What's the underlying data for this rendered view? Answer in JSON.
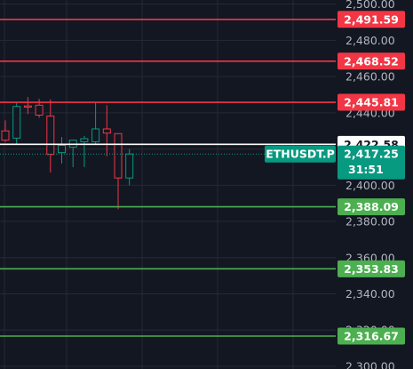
{
  "chart_data": {
    "type": "candlestick",
    "symbol": "ETHUSDT.P",
    "countdown": "31:51",
    "y_axis_ticks": [
      2500.0,
      2480.0,
      2460.0,
      2440.0,
      2420.0,
      2400.0,
      2380.0,
      2360.0,
      2340.0,
      2320.0,
      2300.0
    ],
    "y_axis_tick_labels": [
      "2,500.00",
      "2,480.00",
      "2,460.00",
      "2,440.00",
      "2,420.00",
      "2,400.00",
      "2,380.00",
      "2,360.00",
      "2,340.00",
      "2,320.00",
      "2,300.00"
    ],
    "ylim": [
      2298.5,
      2502.3
    ],
    "current_price": {
      "value": 2417.25,
      "label": "2,417.25",
      "symbol_label": "ETHUSDT.P",
      "color": "#089981"
    },
    "reference_line": {
      "value": 2422.58,
      "label": "2,422.58",
      "color": "#ffffff"
    },
    "resistance_lines": [
      {
        "value": 2491.59,
        "label": "2,491.59"
      },
      {
        "value": 2468.52,
        "label": "2,468.52"
      },
      {
        "value": 2445.81,
        "label": "2,445.81"
      }
    ],
    "support_lines": [
      {
        "value": 2388.09,
        "label": "2,388.09"
      },
      {
        "value": 2353.83,
        "label": "2,353.83"
      },
      {
        "value": 2316.67,
        "label": "2,316.67"
      }
    ],
    "candles": [
      {
        "open": 2430.0,
        "high": 2435.8,
        "low": 2424.0,
        "close": 2424.9
      },
      {
        "open": 2426.0,
        "high": 2445.3,
        "low": 2422.6,
        "close": 2443.5
      },
      {
        "open": 2443.8,
        "high": 2448.7,
        "low": 2439.3,
        "close": 2443.1
      },
      {
        "open": 2444.2,
        "high": 2447.7,
        "low": 2437.3,
        "close": 2438.7
      },
      {
        "open": 2438.2,
        "high": 2447.4,
        "low": 2407.0,
        "close": 2417.0
      },
      {
        "open": 2418.0,
        "high": 2426.6,
        "low": 2412.0,
        "close": 2422.0
      },
      {
        "open": 2421.0,
        "high": 2425.0,
        "low": 2410.0,
        "close": 2424.9
      },
      {
        "open": 2424.0,
        "high": 2427.2,
        "low": 2410.0,
        "close": 2425.7
      },
      {
        "open": 2424.0,
        "high": 2446.1,
        "low": 2422.6,
        "close": 2431.1
      },
      {
        "open": 2431.1,
        "high": 2444.2,
        "low": 2416.0,
        "close": 2428.8
      },
      {
        "open": 2428.5,
        "high": 2428.6,
        "low": 2386.8,
        "close": 2404.0
      },
      {
        "open": 2404.0,
        "high": 2420.0,
        "low": 2400.0,
        "close": 2417.25
      }
    ],
    "colors": {
      "background": "#131722",
      "grid": "#262a35",
      "up": "#089981",
      "down": "#f23645",
      "resistance": "#f23645",
      "support": "#4caf50",
      "axis_text": "#b2b5be"
    }
  }
}
